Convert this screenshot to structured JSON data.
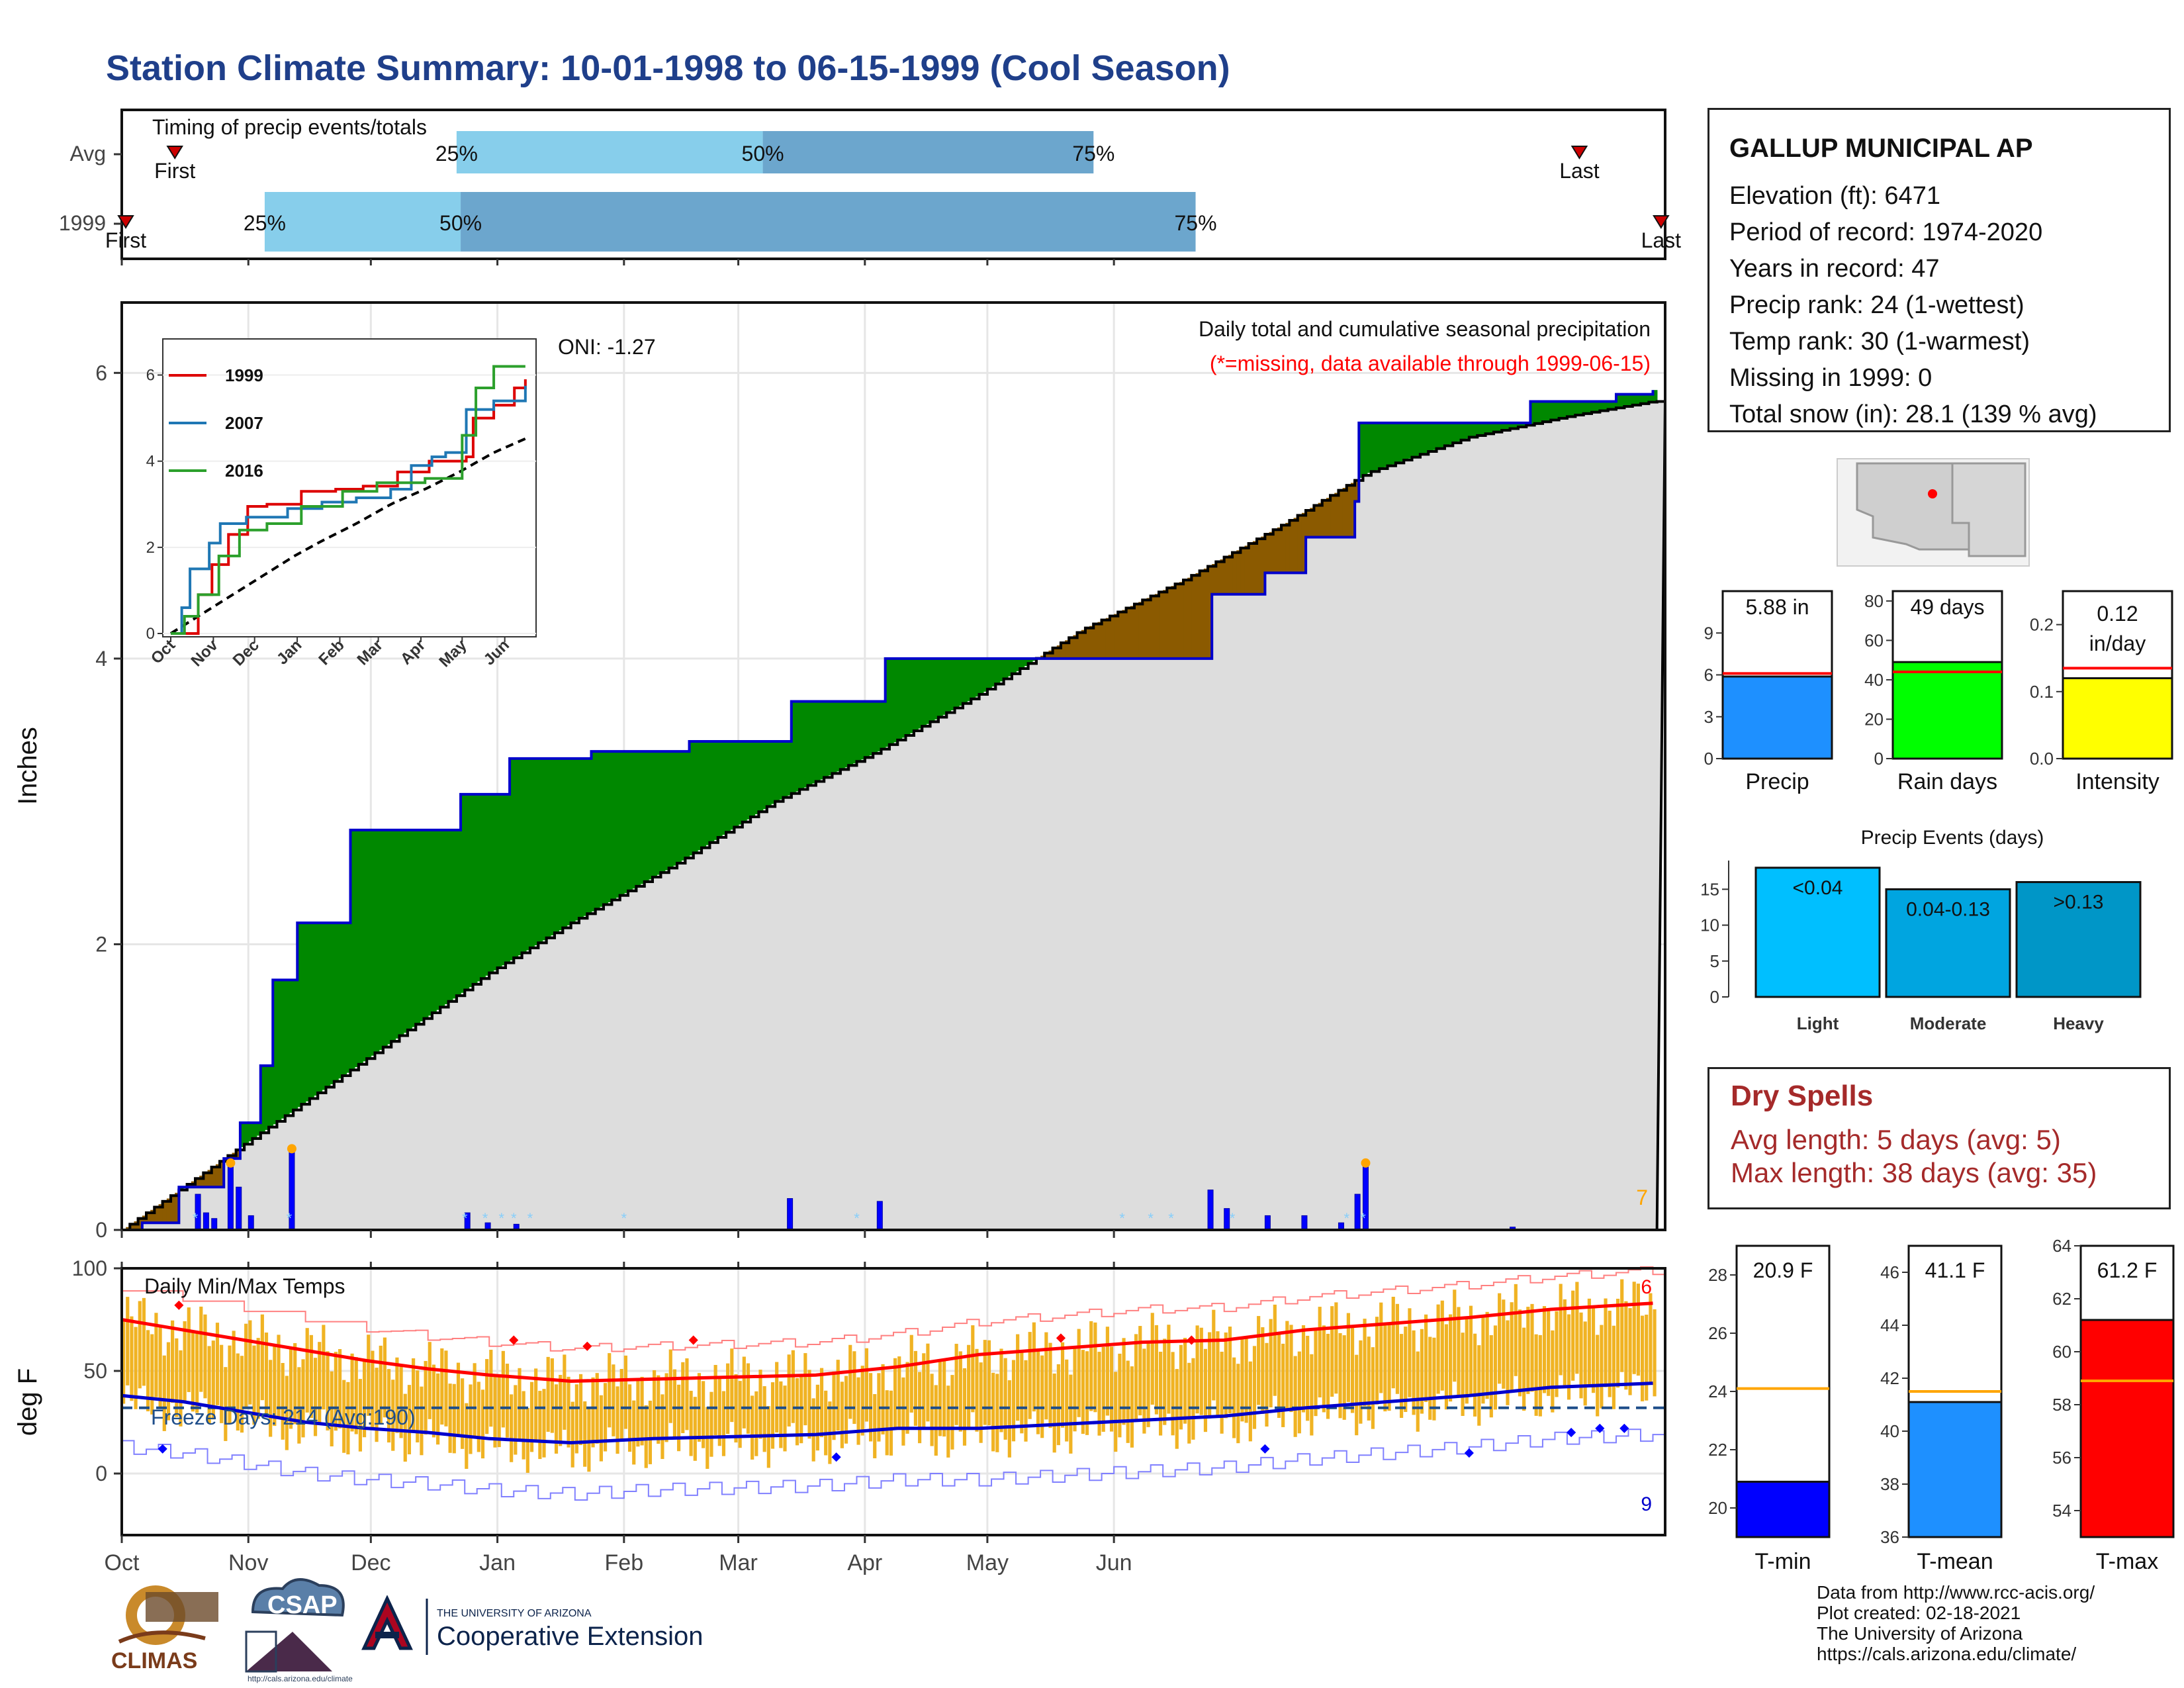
{
  "title": "Station Climate Summary: 10-01-1998 to 06-15-1999 (Cool Season)",
  "timing": {
    "label": "Timing of precip events/totals",
    "rows": [
      {
        "name": "Avg",
        "first_day": 13,
        "last_day": 357,
        "q25_day": 82,
        "q50_day": 157,
        "q75_day": 238,
        "q100_day": 357
      },
      {
        "name": "1999",
        "first_day": 0,
        "last_day": 377,
        "q25_day": 35,
        "q50_day": 83,
        "q75_day": 263,
        "q100_day": 377
      }
    ],
    "first_label": "First",
    "last_label": "Last",
    "pct_labels": [
      "25%",
      "50%",
      "75%"
    ],
    "colors": {
      "light": "#87ceeb",
      "dark": "#6ca6cd",
      "marker": "#cc0000"
    }
  },
  "precip_panel": {
    "header": "Daily total and cumulative seasonal precipitation",
    "missing_note": "(*=missing, data available through 1999-06-15)",
    "oni": "ONI: -1.27",
    "ylabel": "Inches",
    "corner_count": "7",
    "colors": {
      "above": "#008800",
      "below": "#8b5a00",
      "avg_fill": "#dddddd",
      "cum_line": "#0000cc",
      "bars": "#0000ff",
      "snow": "#87cefa",
      "event": "#ffa500"
    }
  },
  "temp_panel": {
    "label": "Daily Min/Max Temps",
    "freeze": "Freeze Days: 214 (Avg:190)",
    "ylabel": "deg F",
    "count_high": "6",
    "count_low": "9",
    "colors": {
      "bars": "#f0b323",
      "tmax": "#ff0000",
      "tmin": "#0000cc",
      "freeze_line": "#1f4e8a"
    }
  },
  "station": {
    "name": "GALLUP MUNICIPAL AP",
    "lines": [
      "Elevation (ft): 6471",
      "Period of record: 1974-2020",
      "Years in record: 47",
      "Precip rank: 24 (1-wettest)",
      "Temp rank: 30 (1-warmest)",
      "Missing in 1999: 0",
      "Total snow (in): 28.1 (139 % avg)"
    ]
  },
  "summary_bars": [
    {
      "label": "Precip",
      "value_text": "5.88 in",
      "value": 5.88,
      "avg": 6.1,
      "ymin": 0,
      "ymax": 12,
      "ticks": [
        0,
        3,
        6,
        9
      ],
      "color": "#1e90ff"
    },
    {
      "label": "Rain days",
      "value_text": "49 days",
      "value": 49,
      "avg": 44,
      "ymin": 0,
      "ymax": 85,
      "ticks": [
        0,
        20,
        40,
        60,
        80
      ],
      "color": "#00ff00"
    },
    {
      "label": "Intensity",
      "value_text": "0.12 in/day",
      "value": 0.12,
      "avg": 0.135,
      "ymin": 0,
      "ymax": 0.25,
      "ticks": [
        0.0,
        0.1,
        0.2
      ],
      "color": "#ffff00"
    }
  ],
  "precip_events": {
    "title": "Precip Events (days)",
    "categories": [
      "Light",
      "Moderate",
      "Heavy"
    ],
    "ranges": [
      "<0.04",
      "0.04-0.13",
      ">0.13"
    ],
    "values": [
      18,
      15,
      16
    ],
    "ticks": [
      0,
      5,
      10,
      15
    ],
    "colors": [
      "#00bfff",
      "#00a5e0",
      "#0096c7"
    ]
  },
  "dry_spells": {
    "title": "Dry Spells",
    "lines": [
      "Avg length: 5 days (avg: 5)",
      "Max length: 38 days (avg: 35)"
    ]
  },
  "temp_bars": [
    {
      "label": "T-min",
      "value_text": "20.9 F",
      "value": 20.9,
      "avg": 24.1,
      "ymin": 19,
      "ymax": 29,
      "ticks": [
        20,
        22,
        24,
        26,
        28
      ],
      "color": "#0000ff"
    },
    {
      "label": "T-mean",
      "value_text": "41.1 F",
      "value": 41.1,
      "avg": 41.5,
      "ymin": 36,
      "ymax": 47,
      "ticks": [
        36,
        38,
        40,
        42,
        44,
        46
      ],
      "color": "#1e90ff"
    },
    {
      "label": "T-max",
      "value_text": "61.2 F",
      "value": 61.2,
      "avg": 58.9,
      "ymin": 53,
      "ymax": 64,
      "ticks": [
        54,
        56,
        58,
        60,
        62,
        64
      ],
      "color": "#ff0000"
    }
  ],
  "inset": {
    "series": [
      {
        "name": "1999",
        "color": "#dd0000"
      },
      {
        "name": "2007",
        "color": "#1f77b4"
      },
      {
        "name": "2016",
        "color": "#2ca02c"
      }
    ],
    "yticks": [
      0,
      2,
      4,
      6
    ],
    "months": [
      "Oct",
      "Nov",
      "Dec",
      "Jan",
      "Feb",
      "Mar",
      "Apr",
      "May",
      "Jun"
    ]
  },
  "chart_data": {
    "type": "area",
    "title": "Daily total and cumulative seasonal precipitation",
    "ylabel": "Inches",
    "x_months": [
      "Oct",
      "Nov",
      "Dec",
      "Jan",
      "Feb",
      "Mar",
      "Apr",
      "May",
      "Jun"
    ],
    "precip_ylim": [
      0,
      6.4
    ],
    "precip_yticks": [
      0,
      2,
      4,
      6
    ],
    "cumulative_1999": [
      {
        "day": 0,
        "value": 0.0
      },
      {
        "day": 5,
        "value": 0.05
      },
      {
        "day": 14,
        "value": 0.3
      },
      {
        "day": 25,
        "value": 0.5
      },
      {
        "day": 29,
        "value": 0.75
      },
      {
        "day": 34,
        "value": 1.15
      },
      {
        "day": 37,
        "value": 1.75
      },
      {
        "day": 43,
        "value": 2.15
      },
      {
        "day": 56,
        "value": 2.8
      },
      {
        "day": 83,
        "value": 3.05
      },
      {
        "day": 95,
        "value": 3.3
      },
      {
        "day": 115,
        "value": 3.35
      },
      {
        "day": 139,
        "value": 3.42
      },
      {
        "day": 164,
        "value": 3.7
      },
      {
        "day": 187,
        "value": 4.0
      },
      {
        "day": 203,
        "value": 4.0
      },
      {
        "day": 265,
        "value": 4.0
      },
      {
        "day": 267,
        "value": 4.45
      },
      {
        "day": 280,
        "value": 4.6
      },
      {
        "day": 290,
        "value": 4.85
      },
      {
        "day": 302,
        "value": 5.1
      },
      {
        "day": 303,
        "value": 5.65
      },
      {
        "day": 345,
        "value": 5.8
      },
      {
        "day": 366,
        "value": 5.85
      },
      {
        "day": 375,
        "value": 5.88
      }
    ],
    "cumulative_avg": [
      {
        "day": 0,
        "value": 0.0
      },
      {
        "day": 10,
        "value": 0.2
      },
      {
        "day": 25,
        "value": 0.5
      },
      {
        "day": 45,
        "value": 0.9
      },
      {
        "day": 60,
        "value": 1.2
      },
      {
        "day": 75,
        "value": 1.5
      },
      {
        "day": 90,
        "value": 1.8
      },
      {
        "day": 110,
        "value": 2.15
      },
      {
        "day": 135,
        "value": 2.55
      },
      {
        "day": 160,
        "value": 3.0
      },
      {
        "day": 185,
        "value": 3.35
      },
      {
        "day": 210,
        "value": 3.75
      },
      {
        "day": 235,
        "value": 4.2
      },
      {
        "day": 260,
        "value": 4.55
      },
      {
        "day": 285,
        "value": 4.95
      },
      {
        "day": 305,
        "value": 5.3
      },
      {
        "day": 330,
        "value": 5.55
      },
      {
        "day": 355,
        "value": 5.7
      },
      {
        "day": 375,
        "value": 5.8
      }
    ],
    "daily_precip": [
      {
        "day": 18,
        "value": 0.25
      },
      {
        "day": 20,
        "value": 0.12
      },
      {
        "day": 22,
        "value": 0.08
      },
      {
        "day": 26,
        "value": 0.45
      },
      {
        "day": 28,
        "value": 0.3
      },
      {
        "day": 31,
        "value": 0.1
      },
      {
        "day": 41,
        "value": 0.55
      },
      {
        "day": 84,
        "value": 0.12
      },
      {
        "day": 89,
        "value": 0.05
      },
      {
        "day": 96,
        "value": 0.04
      },
      {
        "day": 163,
        "value": 0.22
      },
      {
        "day": 185,
        "value": 0.2
      },
      {
        "day": 266,
        "value": 0.28
      },
      {
        "day": 270,
        "value": 0.15
      },
      {
        "day": 280,
        "value": 0.1
      },
      {
        "day": 289,
        "value": 0.1
      },
      {
        "day": 298,
        "value": 0.05
      },
      {
        "day": 302,
        "value": 0.25
      },
      {
        "day": 304,
        "value": 0.45
      },
      {
        "day": 340,
        "value": 0.02
      }
    ],
    "temp_ylim": [
      -30,
      100
    ],
    "temp_yticks": [
      0,
      50,
      100
    ],
    "tmax_smooth": [
      {
        "day": 0,
        "value": 75
      },
      {
        "day": 15,
        "value": 70
      },
      {
        "day": 30,
        "value": 65
      },
      {
        "day": 45,
        "value": 60
      },
      {
        "day": 60,
        "value": 55
      },
      {
        "day": 75,
        "value": 51
      },
      {
        "day": 90,
        "value": 48
      },
      {
        "day": 110,
        "value": 45
      },
      {
        "day": 130,
        "value": 46
      },
      {
        "day": 150,
        "value": 47
      },
      {
        "day": 170,
        "value": 48
      },
      {
        "day": 190,
        "value": 52
      },
      {
        "day": 210,
        "value": 58
      },
      {
        "day": 230,
        "value": 61
      },
      {
        "day": 250,
        "value": 64
      },
      {
        "day": 270,
        "value": 65
      },
      {
        "day": 290,
        "value": 70
      },
      {
        "day": 310,
        "value": 73
      },
      {
        "day": 330,
        "value": 76
      },
      {
        "day": 350,
        "value": 80
      },
      {
        "day": 375,
        "value": 83
      }
    ],
    "tmin_smooth": [
      {
        "day": 0,
        "value": 38
      },
      {
        "day": 15,
        "value": 35
      },
      {
        "day": 30,
        "value": 30
      },
      {
        "day": 45,
        "value": 25
      },
      {
        "day": 60,
        "value": 22
      },
      {
        "day": 75,
        "value": 20
      },
      {
        "day": 90,
        "value": 17
      },
      {
        "day": 110,
        "value": 15
      },
      {
        "day": 130,
        "value": 17
      },
      {
        "day": 150,
        "value": 18
      },
      {
        "day": 170,
        "value": 19
      },
      {
        "day": 190,
        "value": 22
      },
      {
        "day": 210,
        "value": 22
      },
      {
        "day": 230,
        "value": 24
      },
      {
        "day": 250,
        "value": 26
      },
      {
        "day": 270,
        "value": 28
      },
      {
        "day": 290,
        "value": 32
      },
      {
        "day": 310,
        "value": 35
      },
      {
        "day": 330,
        "value": 38
      },
      {
        "day": 350,
        "value": 42
      },
      {
        "day": 375,
        "value": 44
      }
    ],
    "freeze_line_value": 32
  }
}
